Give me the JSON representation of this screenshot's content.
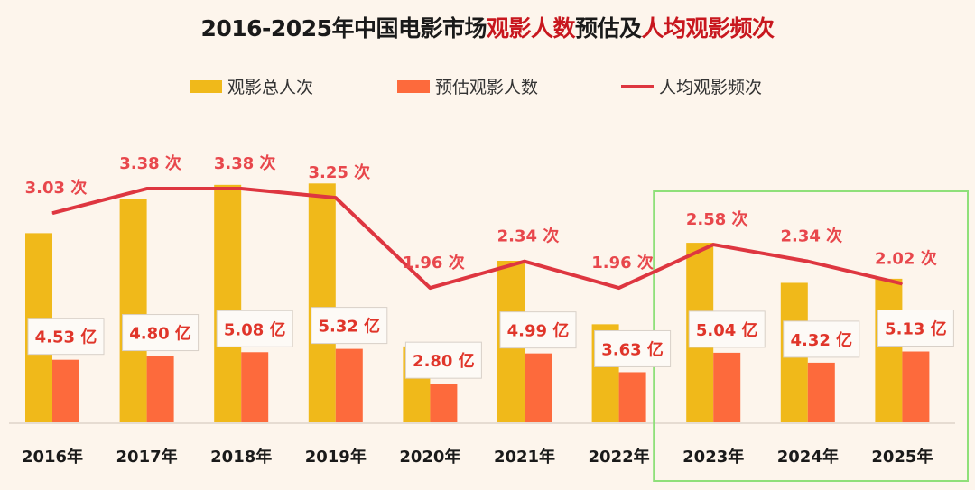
{
  "title": {
    "part1": "2016-2025年中国电影市场",
    "part2": "观影人数",
    "part3": "预估及",
    "part4": "人均观影频次"
  },
  "colors": {
    "total": "#f0b91a",
    "estimated": "#fd6a3c",
    "frequency": "#de3640",
    "highlight": "#8fe07a",
    "label_text": "#e0352a"
  },
  "chart_data": {
    "type": "bar",
    "title": "2016-2025年中国电影市场观影人数预估及人均观影频次",
    "categories": [
      "2016年",
      "2017年",
      "2018年",
      "2019年",
      "2020年",
      "2021年",
      "2022年",
      "2023年",
      "2024年",
      "2025年"
    ],
    "series": [
      {
        "name": "观影总人次",
        "type": "bar",
        "values": [
          13.7,
          16.2,
          17.2,
          17.3,
          5.5,
          11.7,
          7.1,
          13.0,
          10.1,
          10.4
        ]
      },
      {
        "name": "预估观影人数",
        "type": "bar",
        "values": [
          4.53,
          4.8,
          5.08,
          5.32,
          2.8,
          4.99,
          3.63,
          5.04,
          4.32,
          5.13
        ],
        "labels": [
          "4.53 亿",
          "4.80 亿",
          "5.08 亿",
          "5.32 亿",
          "2.80 亿",
          "4.99 亿",
          "3.63 亿",
          "5.04 亿",
          "4.32 亿",
          "5.13 亿"
        ]
      },
      {
        "name": "人均观影频次",
        "type": "line",
        "values": [
          3.03,
          3.38,
          3.38,
          3.25,
          1.96,
          2.34,
          1.96,
          2.58,
          2.34,
          2.02
        ],
        "labels": [
          "3.03 次",
          "3.38 次",
          "3.38 次",
          "3.25 次",
          "1.96 次",
          "2.34 次",
          "1.96 次",
          "2.58 次",
          "2.34 次",
          "2.02 次"
        ]
      }
    ],
    "legend": [
      "观影总人次",
      "预估观影人数",
      "人均观影频次"
    ],
    "legend_position": "top",
    "grid": false,
    "highlighted_categories": [
      "2023年",
      "2024年",
      "2025年"
    ]
  }
}
